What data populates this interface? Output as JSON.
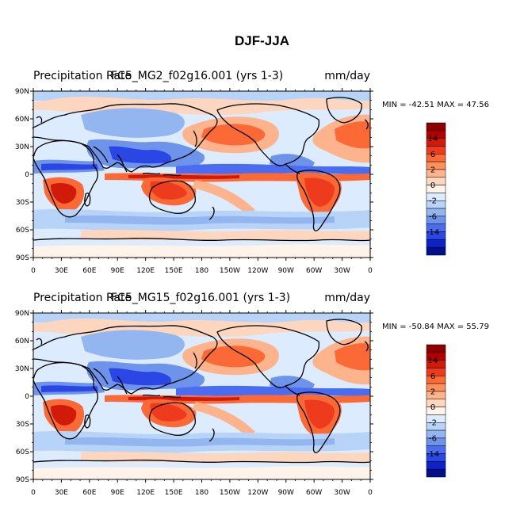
{
  "title": "DJF-JJA",
  "panels": [
    {
      "variable_label": "Precipitation Rate",
      "case_label": "FC5_MG2_f02g16.001 (yrs 1-3)",
      "units": "mm/day",
      "min_label": "MIN = ",
      "min_value": "-42.51",
      "max_label": "MAX = ",
      "max_value": "47.56"
    },
    {
      "variable_label": "Precipitation Rate",
      "case_label": "FC5_MG15_f02g16.001 (yrs 1-3)",
      "units": "mm/day",
      "min_label": "MIN = ",
      "min_value": "-50.84",
      "max_label": "MAX = ",
      "max_value": "55.79"
    }
  ],
  "map": {
    "lon_ticks": [
      "0",
      "30E",
      "60E",
      "90E",
      "120E",
      "150E",
      "180",
      "150W",
      "120W",
      "90W",
      "60W",
      "30W",
      "0"
    ],
    "lat_ticks": [
      "90N",
      "60N",
      "30N",
      "0",
      "30S",
      "60S",
      "90S"
    ]
  },
  "colorbar": {
    "labels": [
      "14",
      "6",
      "2",
      "0",
      "-2",
      "-6",
      "-14"
    ],
    "colors": [
      "#8b0000",
      "#b20000",
      "#d21a0a",
      "#ee3b1e",
      "#fb6a36",
      "#fd8f5a",
      "#fdb38b",
      "#fdd6bf",
      "#fff3ea",
      "#dcebfe",
      "#b8d3f8",
      "#94b6f0",
      "#6e93ea",
      "#4a6cf0",
      "#2a47e6",
      "#0e22c8",
      "#000f8a"
    ]
  },
  "colors": {
    "positive": "#ee3b1e",
    "negative": "#2a47e6",
    "coast": "#000000"
  }
}
